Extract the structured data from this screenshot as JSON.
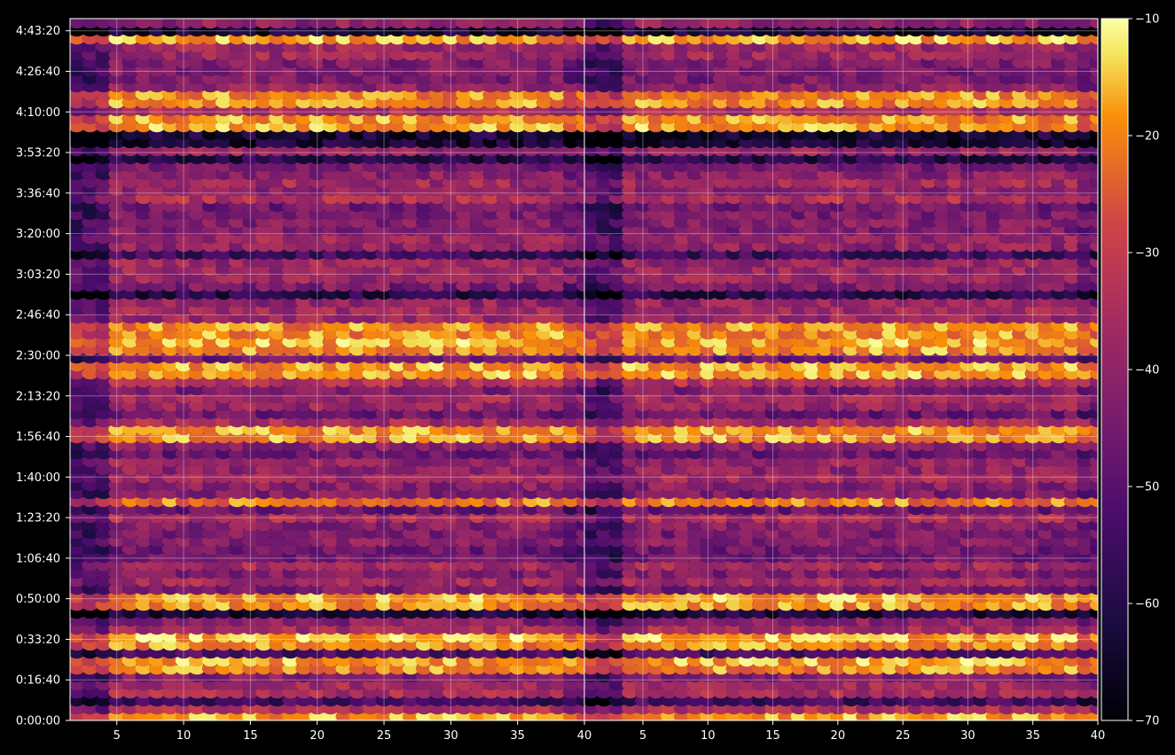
{
  "chart_data": {
    "type": "heatmap",
    "panels": [
      {
        "id": "left",
        "xlim": [
          1.5,
          40
        ],
        "x_ticks": [
          5,
          10,
          15,
          20,
          25,
          30,
          35,
          40
        ]
      },
      {
        "id": "right",
        "xlim": [
          0.5,
          40
        ],
        "x_ticks": [
          5,
          10,
          15,
          20,
          25,
          30,
          35,
          40
        ]
      }
    ],
    "x_tick_labels": [
      "5",
      "10",
      "15",
      "20",
      "25",
      "30",
      "35",
      "40"
    ],
    "ylim_seconds": [
      0,
      17300
    ],
    "y_ticks_seconds": [
      0,
      1000,
      2000,
      3000,
      4000,
      5000,
      6000,
      7000,
      8000,
      9000,
      10000,
      11000,
      12000,
      13000,
      14000,
      15000,
      16000,
      17000
    ],
    "y_tick_labels": [
      "0:00:00",
      "0:16:40",
      "0:33:20",
      "0:50:00",
      "1:06:40",
      "1:23:20",
      "1:40:00",
      "1:56:40",
      "2:13:20",
      "2:30:00",
      "2:46:40",
      "3:03:20",
      "3:20:00",
      "3:36:40",
      "3:53:20",
      "4:10:00",
      "4:26:40",
      "4:43:20"
    ],
    "colorbar": {
      "colormap": "inferno",
      "range": [
        -70,
        -10
      ],
      "ticks": [
        -10,
        -20,
        -30,
        -40,
        -50,
        -60,
        -70
      ],
      "tick_labels": [
        "−10",
        "−20",
        "−30",
        "−40",
        "−50",
        "−60",
        "−70"
      ]
    },
    "bright_rows_seconds": [
      100,
      1400,
      2000,
      3000,
      5400,
      7000,
      8600,
      9300,
      9700,
      14700,
      15300,
      16800
    ],
    "grid": true,
    "background": "#000000",
    "grid_color": "#ffffff"
  }
}
